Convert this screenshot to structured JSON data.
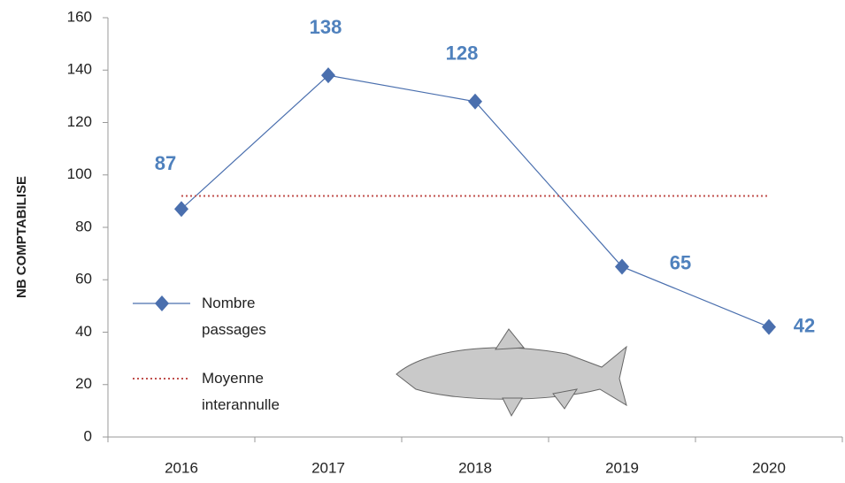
{
  "chart_data": {
    "type": "line",
    "y_label": "NB COMPTABILISE",
    "categories": [
      "2016",
      "2017",
      "2018",
      "2019",
      "2020"
    ],
    "series": [
      {
        "name": "Nombre passages",
        "color": "#4a6fae",
        "values": [
          87,
          138,
          128,
          65,
          42
        ]
      },
      {
        "name": "Moyenne interannulle",
        "color": "#c0504d",
        "values": [
          92,
          92,
          92,
          92,
          92
        ],
        "dotted": true
      }
    ],
    "ylim": [
      0,
      160
    ],
    "yticks": [
      0,
      20,
      40,
      60,
      80,
      100,
      120,
      140,
      160
    ],
    "legend": "lower left",
    "grid": false
  }
}
